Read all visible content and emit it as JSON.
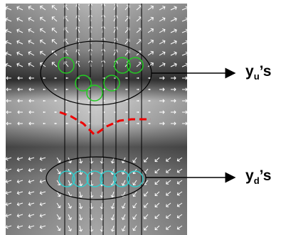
{
  "labels": [
    {
      "base": "y",
      "sub": "u",
      "suffix": "’s"
    },
    {
      "base": "y",
      "sub": "d",
      "suffix": "’s"
    }
  ]
}
